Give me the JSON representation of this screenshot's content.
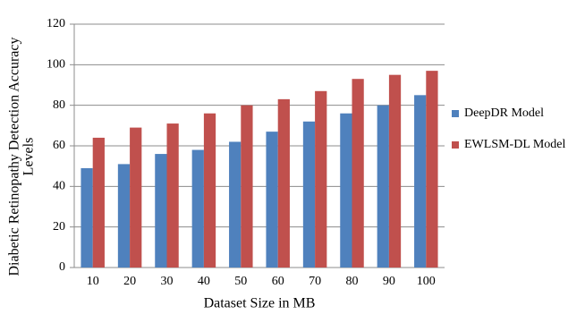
{
  "chart_data": {
    "type": "bar",
    "x_label": "Dataset Size in MB",
    "y_label": [
      "Diabetic Retinopathy Detection Accuracy",
      "Levels"
    ],
    "categories": [
      "10",
      "20",
      "30",
      "40",
      "50",
      "60",
      "70",
      "80",
      "90",
      "100"
    ],
    "series": [
      {
        "name": "DeepDR Model",
        "color": "#4f81bd",
        "values": [
          49,
          51,
          56,
          58,
          62,
          67,
          72,
          76,
          80,
          85
        ]
      },
      {
        "name": "EWLSM-DL Model",
        "color": "#c0504d",
        "values": [
          64,
          69,
          71,
          76,
          80,
          83,
          87,
          93,
          95,
          97
        ]
      }
    ],
    "ylim": [
      0,
      120
    ],
    "yticks": [
      0,
      20,
      40,
      60,
      80,
      100,
      120
    ],
    "grid": true,
    "legend": "right"
  }
}
